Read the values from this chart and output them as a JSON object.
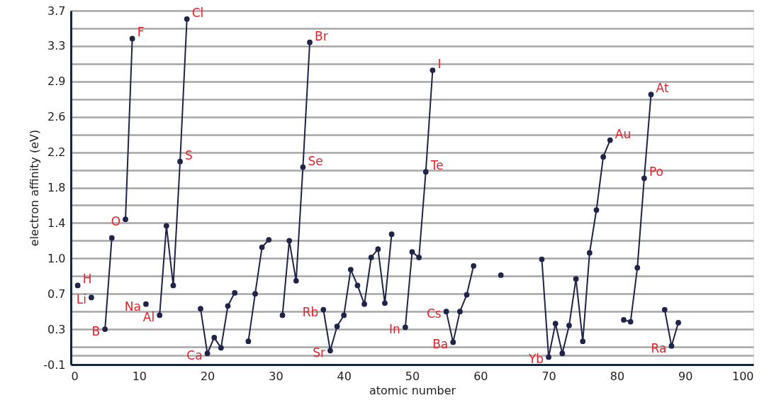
{
  "chart_data": {
    "type": "line",
    "xlabel": "atomic number",
    "ylabel": "electron affinity (eV)",
    "x": [
      1,
      2,
      3,
      4,
      5,
      6,
      7,
      8,
      9,
      10,
      11,
      12,
      13,
      14,
      15,
      16,
      17,
      18,
      19,
      20,
      21,
      22,
      23,
      24,
      25,
      26,
      27,
      28,
      29,
      30,
      31,
      32,
      33,
      34,
      35,
      36,
      37,
      38,
      39,
      40,
      41,
      42,
      43,
      44,
      45,
      46,
      47,
      48,
      49,
      50,
      51,
      52,
      53,
      54,
      55,
      56,
      57,
      58,
      59,
      60,
      61,
      62,
      63,
      64,
      65,
      66,
      67,
      68,
      69,
      70,
      71,
      72,
      73,
      74,
      75,
      76,
      77,
      78,
      79,
      80,
      81,
      82,
      83,
      84,
      85,
      86,
      87,
      88,
      89
    ],
    "series": [
      {
        "color": "#1f2448",
        "values": [
          0.75,
          null,
          0.62,
          null,
          0.28,
          1.26,
          null,
          1.46,
          3.4,
          null,
          0.55,
          null,
          0.43,
          1.39,
          0.75,
          2.08,
          3.61,
          null,
          0.5,
          0.02,
          0.19,
          0.08,
          0.53,
          0.67,
          null,
          0.15,
          0.66,
          1.16,
          1.24,
          null,
          0.43,
          1.23,
          0.8,
          2.02,
          3.36,
          null,
          0.49,
          0.05,
          0.31,
          0.43,
          0.92,
          0.75,
          0.55,
          1.05,
          1.14,
          0.56,
          1.3,
          null,
          0.3,
          1.11,
          1.05,
          1.97,
          3.06,
          null,
          0.47,
          0.14,
          0.47,
          0.65,
          0.96,
          null,
          null,
          null,
          0.86,
          null,
          null,
          null,
          null,
          null,
          1.03,
          -0.02,
          0.34,
          0.02,
          0.32,
          0.82,
          0.15,
          1.1,
          1.56,
          2.13,
          2.31,
          null,
          0.38,
          0.36,
          0.94,
          1.9,
          2.8,
          null,
          0.49,
          0.1,
          0.35
        ]
      }
    ],
    "marker": "circle",
    "line_style": "solid",
    "xlim": [
      0,
      100
    ],
    "xticks": [
      0,
      10,
      20,
      30,
      40,
      50,
      60,
      70,
      80,
      90,
      100
    ],
    "ylim": [
      -0.1,
      3.7
    ],
    "yticks": [
      {
        "value": -0.1,
        "label": "-0.1"
      },
      {
        "value": 0,
        "label": null
      },
      {
        "value": 0.09,
        "label": null
      },
      {
        "value": 0.28,
        "label": "0.3"
      },
      {
        "value": 0.47,
        "label": null
      },
      {
        "value": 0.66,
        "label": "0.7"
      },
      {
        "value": 0.85,
        "label": null
      },
      {
        "value": 1.04,
        "label": "1.0"
      },
      {
        "value": 1.23,
        "label": null
      },
      {
        "value": 1.42,
        "label": "1.4"
      },
      {
        "value": 1.61,
        "label": null
      },
      {
        "value": 1.8,
        "label": "1.8"
      },
      {
        "value": 1.99,
        "label": null
      },
      {
        "value": 2.18,
        "label": "2.2"
      },
      {
        "value": 2.37,
        "label": null
      },
      {
        "value": 2.56,
        "label": "2.6"
      },
      {
        "value": 2.75,
        "label": null
      },
      {
        "value": 2.94,
        "label": "2.9"
      },
      {
        "value": 3.13,
        "label": null
      },
      {
        "value": 3.32,
        "label": "3.3"
      },
      {
        "value": 3.51,
        "label": null
      },
      {
        "value": 3.7,
        "label": "3.7"
      }
    ],
    "grid": "y",
    "annotations": [
      {
        "text": "H",
        "x": 1,
        "y": 0.75
      },
      {
        "text": "Li",
        "x": 3,
        "y": 0.62
      },
      {
        "text": "B",
        "x": 5,
        "y": 0.28
      },
      {
        "text": "O",
        "x": 8,
        "y": 1.46
      },
      {
        "text": "F",
        "x": 9,
        "y": 3.4
      },
      {
        "text": "Na",
        "x": 11,
        "y": 0.55
      },
      {
        "text": "Al",
        "x": 13,
        "y": 0.43
      },
      {
        "text": "S",
        "x": 16,
        "y": 2.08
      },
      {
        "text": "Cl",
        "x": 17,
        "y": 3.61
      },
      {
        "text": "Ca",
        "x": 20,
        "y": 0.02
      },
      {
        "text": "Se",
        "x": 34,
        "y": 2.02
      },
      {
        "text": "Br",
        "x": 35,
        "y": 3.36
      },
      {
        "text": "Rb",
        "x": 37,
        "y": 0.49
      },
      {
        "text": "Sr",
        "x": 38,
        "y": 0.05
      },
      {
        "text": "In",
        "x": 49,
        "y": 0.3
      },
      {
        "text": "Te",
        "x": 52,
        "y": 1.97
      },
      {
        "text": "I",
        "x": 53,
        "y": 3.06
      },
      {
        "text": "Cs",
        "x": 55,
        "y": 0.47
      },
      {
        "text": "Ba",
        "x": 56,
        "y": 0.14
      },
      {
        "text": "Yb",
        "x": 70,
        "y": -0.02
      },
      {
        "text": "Au",
        "x": 79,
        "y": 2.31
      },
      {
        "text": "Po",
        "x": 84,
        "y": 1.9
      },
      {
        "text": "At",
        "x": 85,
        "y": 2.8
      },
      {
        "text": "Ra",
        "x": 88,
        "y": 0.1
      }
    ]
  }
}
